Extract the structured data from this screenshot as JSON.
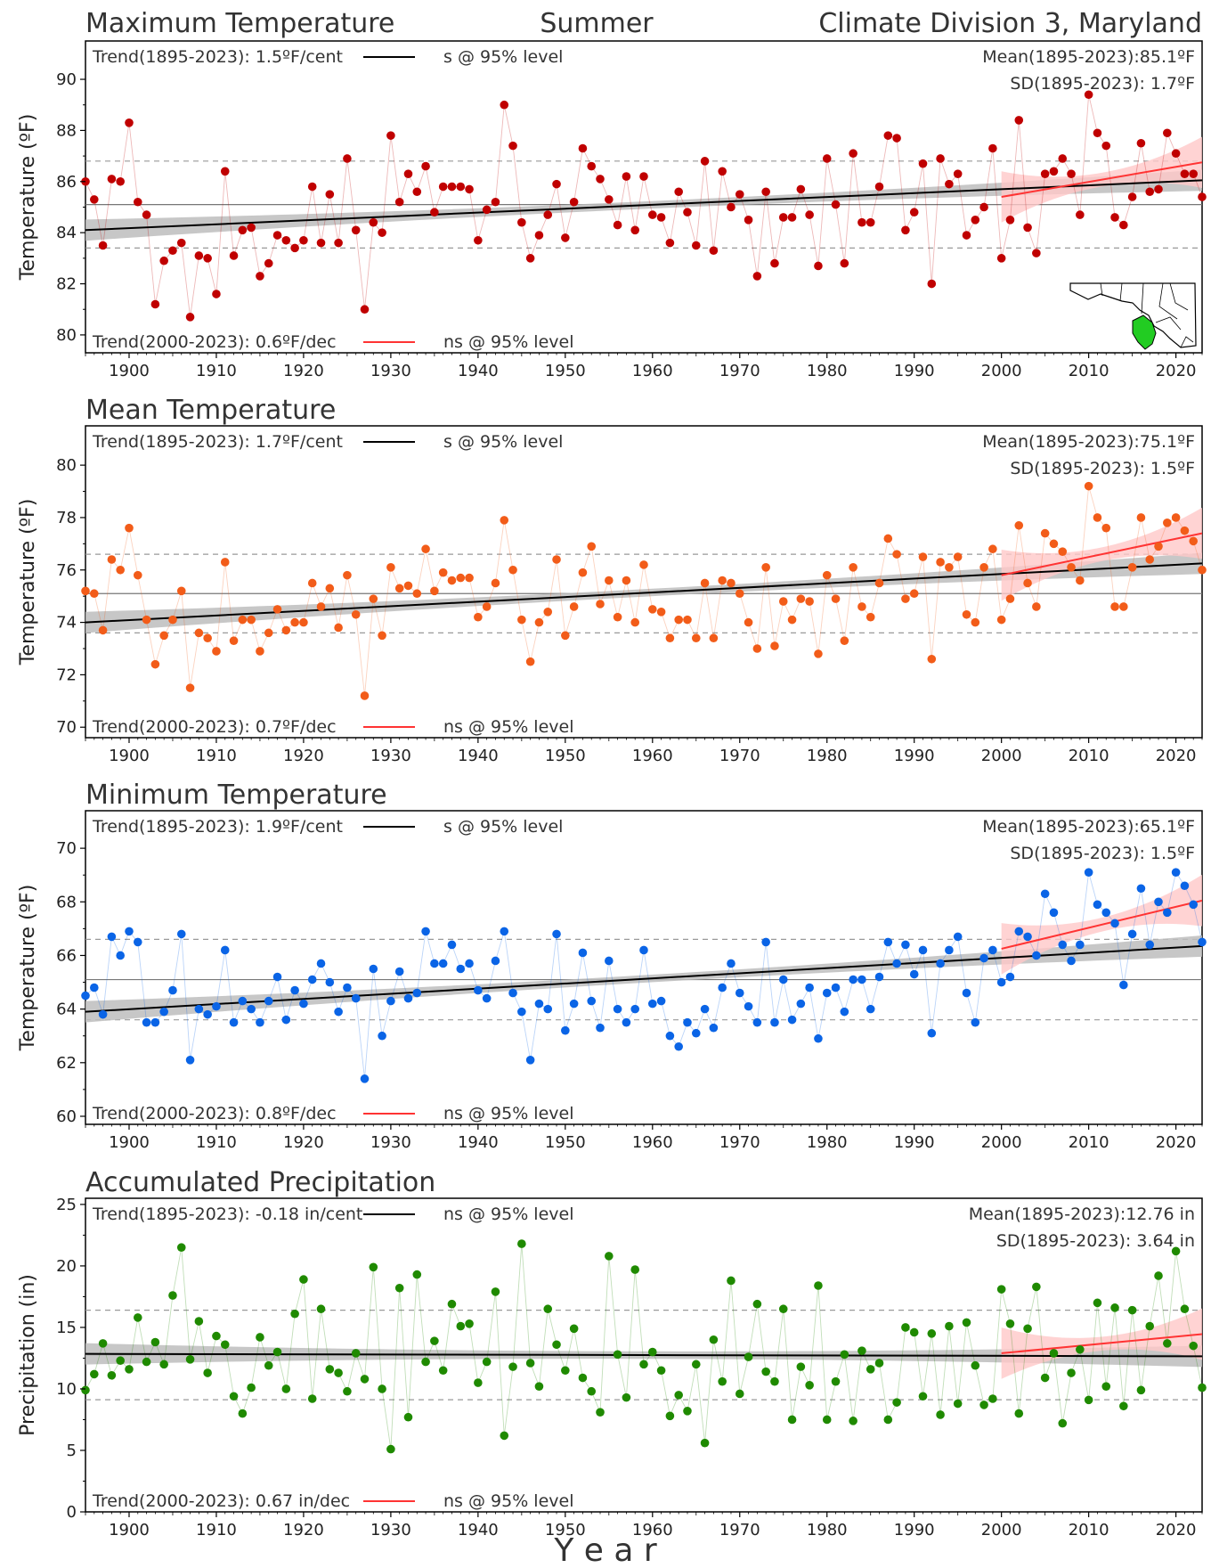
{
  "figure": {
    "season": "Summer",
    "region": "Climate Division 3, Maryland",
    "x_axis_label": "Y e a r"
  },
  "chart_data": [
    {
      "type": "scatter",
      "title": "Maximum Temperature",
      "ylabel": "Temperature (ºF)",
      "xlim": [
        1895,
        2023
      ],
      "ylim": [
        79.3,
        91.5
      ],
      "yticks": [
        80,
        82,
        84,
        86,
        88,
        90
      ],
      "xticks": [
        1900,
        1910,
        1920,
        1930,
        1940,
        1950,
        1960,
        1970,
        1980,
        1990,
        2000,
        2010,
        2020
      ],
      "color": "#c00000",
      "x": [
        1895,
        1896,
        1897,
        1898,
        1899,
        1900,
        1901,
        1902,
        1903,
        1904,
        1905,
        1906,
        1907,
        1908,
        1909,
        1910,
        1911,
        1912,
        1913,
        1914,
        1915,
        1916,
        1917,
        1918,
        1919,
        1920,
        1921,
        1922,
        1923,
        1924,
        1925,
        1926,
        1927,
        1928,
        1929,
        1930,
        1931,
        1932,
        1933,
        1934,
        1935,
        1936,
        1937,
        1938,
        1939,
        1940,
        1941,
        1942,
        1943,
        1944,
        1945,
        1946,
        1947,
        1948,
        1949,
        1950,
        1951,
        1952,
        1953,
        1954,
        1955,
        1956,
        1957,
        1958,
        1959,
        1960,
        1961,
        1962,
        1963,
        1964,
        1965,
        1966,
        1967,
        1968,
        1969,
        1970,
        1971,
        1972,
        1973,
        1974,
        1975,
        1976,
        1977,
        1978,
        1979,
        1980,
        1981,
        1982,
        1983,
        1984,
        1985,
        1986,
        1987,
        1988,
        1989,
        1990,
        1991,
        1992,
        1993,
        1994,
        1995,
        1996,
        1997,
        1998,
        1999,
        2000,
        2001,
        2002,
        2003,
        2004,
        2005,
        2006,
        2007,
        2008,
        2009,
        2010,
        2011,
        2012,
        2013,
        2014,
        2015,
        2016,
        2017,
        2018,
        2019,
        2020,
        2021,
        2022,
        2023
      ],
      "values": [
        86.0,
        85.3,
        83.5,
        86.1,
        86.0,
        88.3,
        85.2,
        84.7,
        81.2,
        82.9,
        83.3,
        83.6,
        80.7,
        83.1,
        83.0,
        81.6,
        86.4,
        83.1,
        84.1,
        84.2,
        82.3,
        82.8,
        83.9,
        83.7,
        83.4,
        83.7,
        85.8,
        83.6,
        85.5,
        83.6,
        86.9,
        84.1,
        81.0,
        84.4,
        84.0,
        87.8,
        85.2,
        86.3,
        85.6,
        86.6,
        84.8,
        85.8,
        85.8,
        85.8,
        85.7,
        83.7,
        84.9,
        85.2,
        89.0,
        87.4,
        84.4,
        83.0,
        83.9,
        84.7,
        85.9,
        83.8,
        85.2,
        87.3,
        86.6,
        86.1,
        85.3,
        84.3,
        86.2,
        84.1,
        86.2,
        84.7,
        84.6,
        83.6,
        85.6,
        84.8,
        83.5,
        86.8,
        83.3,
        86.4,
        85.0,
        85.5,
        84.5,
        82.3,
        85.6,
        82.8,
        84.6,
        84.6,
        85.7,
        84.7,
        82.7,
        86.9,
        85.1,
        82.8,
        87.1,
        84.4,
        84.4,
        85.8,
        87.8,
        87.7,
        84.1,
        84.8,
        86.7,
        82.0,
        86.9,
        85.9,
        86.3,
        83.9,
        84.5,
        85.0,
        87.3,
        83.0,
        84.5,
        88.4,
        84.2,
        83.2,
        86.3,
        86.4,
        86.9,
        86.3,
        84.7,
        89.4,
        87.9,
        87.4,
        84.6,
        84.3,
        85.4,
        87.5,
        85.6,
        85.7,
        87.9,
        87.1,
        86.3,
        86.3,
        85.4
      ],
      "mean": 85.1,
      "sd": 1.7,
      "long_trend": {
        "from": [
          1895,
          84.1
        ],
        "to": [
          2023,
          86.05
        ]
      },
      "short_trend": {
        "from": [
          2000,
          85.4
        ],
        "to": [
          2023,
          86.75
        ]
      },
      "trend_long_text": "Trend(1895-2023):  1.5ºF/cent",
      "trend_long_sig": "s @ 95% level",
      "trend_short_text": "Trend(2000-2023):  0.6ºF/dec",
      "trend_short_sig": "ns @ 95% level",
      "mean_text": "Mean(1895-2023):85.1ºF",
      "sd_text": "SD(1895-2023): 1.7ºF"
    },
    {
      "type": "scatter",
      "title": "Mean Temperature",
      "ylabel": "Temperature (ºF)",
      "xlim": [
        1895,
        2023
      ],
      "ylim": [
        69.6,
        81.5
      ],
      "yticks": [
        70,
        72,
        74,
        76,
        78,
        80
      ],
      "xticks": [
        1900,
        1910,
        1920,
        1930,
        1940,
        1950,
        1960,
        1970,
        1980,
        1990,
        2000,
        2010,
        2020
      ],
      "color": "#f25c19",
      "x": [
        1895,
        1896,
        1897,
        1898,
        1899,
        1900,
        1901,
        1902,
        1903,
        1904,
        1905,
        1906,
        1907,
        1908,
        1909,
        1910,
        1911,
        1912,
        1913,
        1914,
        1915,
        1916,
        1917,
        1918,
        1919,
        1920,
        1921,
        1922,
        1923,
        1924,
        1925,
        1926,
        1927,
        1928,
        1929,
        1930,
        1931,
        1932,
        1933,
        1934,
        1935,
        1936,
        1937,
        1938,
        1939,
        1940,
        1941,
        1942,
        1943,
        1944,
        1945,
        1946,
        1947,
        1948,
        1949,
        1950,
        1951,
        1952,
        1953,
        1954,
        1955,
        1956,
        1957,
        1958,
        1959,
        1960,
        1961,
        1962,
        1963,
        1964,
        1965,
        1966,
        1967,
        1968,
        1969,
        1970,
        1971,
        1972,
        1973,
        1974,
        1975,
        1976,
        1977,
        1978,
        1979,
        1980,
        1981,
        1982,
        1983,
        1984,
        1985,
        1986,
        1987,
        1988,
        1989,
        1990,
        1991,
        1992,
        1993,
        1994,
        1995,
        1996,
        1997,
        1998,
        1999,
        2000,
        2001,
        2002,
        2003,
        2004,
        2005,
        2006,
        2007,
        2008,
        2009,
        2010,
        2011,
        2012,
        2013,
        2014,
        2015,
        2016,
        2017,
        2018,
        2019,
        2020,
        2021,
        2022,
        2023
      ],
      "values": [
        75.2,
        75.1,
        73.7,
        76.4,
        76.0,
        77.6,
        75.8,
        74.1,
        72.4,
        73.5,
        74.1,
        75.2,
        71.5,
        73.6,
        73.4,
        72.9,
        76.3,
        73.3,
        74.1,
        74.1,
        72.9,
        73.6,
        74.5,
        73.7,
        74.0,
        74.0,
        75.5,
        74.6,
        75.3,
        73.8,
        75.8,
        74.3,
        71.2,
        74.9,
        73.5,
        76.1,
        75.3,
        75.4,
        75.1,
        76.8,
        75.2,
        75.9,
        75.6,
        75.7,
        75.7,
        74.2,
        74.6,
        75.5,
        77.9,
        76.0,
        74.1,
        72.5,
        74.0,
        74.4,
        76.4,
        73.5,
        74.6,
        75.9,
        76.9,
        74.7,
        75.6,
        74.2,
        75.6,
        74.0,
        76.2,
        74.5,
        74.4,
        73.4,
        74.1,
        74.1,
        73.4,
        75.5,
        73.4,
        75.6,
        75.5,
        75.1,
        74.0,
        73.0,
        76.1,
        73.1,
        74.8,
        74.1,
        74.9,
        74.8,
        72.8,
        75.8,
        74.9,
        73.3,
        76.1,
        74.6,
        74.2,
        75.5,
        77.2,
        76.6,
        74.9,
        75.1,
        76.5,
        72.6,
        76.3,
        76.1,
        76.5,
        74.3,
        74.0,
        76.1,
        76.8,
        74.1,
        74.9,
        77.7,
        75.5,
        74.6,
        77.4,
        77.0,
        76.7,
        76.1,
        75.6,
        79.2,
        78.0,
        77.6,
        74.6,
        74.6,
        76.1,
        78.0,
        76.4,
        76.9,
        77.8,
        78.0,
        77.5,
        77.1,
        76.0
      ],
      "mean": 75.1,
      "sd": 1.5,
      "long_trend": {
        "from": [
          1895,
          74.0
        ],
        "to": [
          2023,
          76.25
        ]
      },
      "short_trend": {
        "from": [
          2000,
          75.8
        ],
        "to": [
          2023,
          77.4
        ]
      },
      "trend_long_text": "Trend(1895-2023):  1.7ºF/cent",
      "trend_long_sig": "s @ 95% level",
      "trend_short_text": "Trend(2000-2023):  0.7ºF/dec",
      "trend_short_sig": "ns @ 95% level",
      "mean_text": "Mean(1895-2023):75.1ºF",
      "sd_text": "SD(1895-2023): 1.5ºF"
    },
    {
      "type": "scatter",
      "title": "Minimum Temperature",
      "ylabel": "Temperature (ºF)",
      "xlim": [
        1895,
        2023
      ],
      "ylim": [
        59.7,
        71.4
      ],
      "yticks": [
        60,
        62,
        64,
        66,
        68,
        70
      ],
      "xticks": [
        1900,
        1910,
        1920,
        1930,
        1940,
        1950,
        1960,
        1970,
        1980,
        1990,
        2000,
        2010,
        2020
      ],
      "color": "#0a64e6",
      "x": [
        1895,
        1896,
        1897,
        1898,
        1899,
        1900,
        1901,
        1902,
        1903,
        1904,
        1905,
        1906,
        1907,
        1908,
        1909,
        1910,
        1911,
        1912,
        1913,
        1914,
        1915,
        1916,
        1917,
        1918,
        1919,
        1920,
        1921,
        1922,
        1923,
        1924,
        1925,
        1926,
        1927,
        1928,
        1929,
        1930,
        1931,
        1932,
        1933,
        1934,
        1935,
        1936,
        1937,
        1938,
        1939,
        1940,
        1941,
        1942,
        1943,
        1944,
        1945,
        1946,
        1947,
        1948,
        1949,
        1950,
        1951,
        1952,
        1953,
        1954,
        1955,
        1956,
        1957,
        1958,
        1959,
        1960,
        1961,
        1962,
        1963,
        1964,
        1965,
        1966,
        1967,
        1968,
        1969,
        1970,
        1971,
        1972,
        1973,
        1974,
        1975,
        1976,
        1977,
        1978,
        1979,
        1980,
        1981,
        1982,
        1983,
        1984,
        1985,
        1986,
        1987,
        1988,
        1989,
        1990,
        1991,
        1992,
        1993,
        1994,
        1995,
        1996,
        1997,
        1998,
        1999,
        2000,
        2001,
        2002,
        2003,
        2004,
        2005,
        2006,
        2007,
        2008,
        2009,
        2010,
        2011,
        2012,
        2013,
        2014,
        2015,
        2016,
        2017,
        2018,
        2019,
        2020,
        2021,
        2022,
        2023
      ],
      "values": [
        64.5,
        64.8,
        63.8,
        66.7,
        66.0,
        66.9,
        66.5,
        63.5,
        63.5,
        63.9,
        64.7,
        66.8,
        62.1,
        64.0,
        63.8,
        64.1,
        66.2,
        63.5,
        64.3,
        64.0,
        63.5,
        64.3,
        65.2,
        63.6,
        64.7,
        64.2,
        65.1,
        65.7,
        65.0,
        63.9,
        64.8,
        64.4,
        61.4,
        65.5,
        63.0,
        64.3,
        65.4,
        64.4,
        64.6,
        66.9,
        65.7,
        65.7,
        66.4,
        65.5,
        65.7,
        64.7,
        64.4,
        65.8,
        66.9,
        64.6,
        63.9,
        62.1,
        64.2,
        64.0,
        66.8,
        63.2,
        64.2,
        66.1,
        64.3,
        63.3,
        65.8,
        64.0,
        63.5,
        64.0,
        66.2,
        64.2,
        64.3,
        63.0,
        62.6,
        63.5,
        63.1,
        64.0,
        63.3,
        64.8,
        65.7,
        64.6,
        64.1,
        63.5,
        66.5,
        63.5,
        65.1,
        63.6,
        64.2,
        64.8,
        62.9,
        64.6,
        64.8,
        63.9,
        65.1,
        65.1,
        64.0,
        65.2,
        66.5,
        65.7,
        66.4,
        65.3,
        66.2,
        63.1,
        65.7,
        66.2,
        66.7,
        64.6,
        63.5,
        65.9,
        66.2,
        65.0,
        65.2,
        66.9,
        66.7,
        66.0,
        68.3,
        67.6,
        66.4,
        65.8,
        66.4,
        69.1,
        67.9,
        67.6,
        67.2,
        64.9,
        66.8,
        68.5,
        66.4,
        68.0,
        67.6,
        69.1,
        68.6,
        67.9,
        66.5
      ],
      "mean": 65.1,
      "sd": 1.5,
      "long_trend": {
        "from": [
          1895,
          63.9
        ],
        "to": [
          2023,
          66.35
        ]
      },
      "short_trend": {
        "from": [
          2000,
          66.25
        ],
        "to": [
          2023,
          68.05
        ]
      },
      "trend_long_text": "Trend(1895-2023):  1.9ºF/cent",
      "trend_long_sig": "s @ 95% level",
      "trend_short_text": "Trend(2000-2023):  0.8ºF/dec",
      "trend_short_sig": "ns @ 95% level",
      "mean_text": "Mean(1895-2023):65.1ºF",
      "sd_text": "SD(1895-2023): 1.5ºF"
    },
    {
      "type": "scatter",
      "title": "Accumulated Precipitation",
      "ylabel": "Precipitation (in)",
      "xlim": [
        1895,
        2023
      ],
      "ylim": [
        0,
        25.5
      ],
      "yticks": [
        0,
        5,
        10,
        15,
        20,
        25
      ],
      "xticks": [
        1900,
        1910,
        1920,
        1930,
        1940,
        1950,
        1960,
        1970,
        1980,
        1990,
        2000,
        2010,
        2020
      ],
      "color": "#1f8a00",
      "x": [
        1895,
        1896,
        1897,
        1898,
        1899,
        1900,
        1901,
        1902,
        1903,
        1904,
        1905,
        1906,
        1907,
        1908,
        1909,
        1910,
        1911,
        1912,
        1913,
        1914,
        1915,
        1916,
        1917,
        1918,
        1919,
        1920,
        1921,
        1922,
        1923,
        1924,
        1925,
        1926,
        1927,
        1928,
        1929,
        1930,
        1931,
        1932,
        1933,
        1934,
        1935,
        1936,
        1937,
        1938,
        1939,
        1940,
        1941,
        1942,
        1943,
        1944,
        1945,
        1946,
        1947,
        1948,
        1949,
        1950,
        1951,
        1952,
        1953,
        1954,
        1955,
        1956,
        1957,
        1958,
        1959,
        1960,
        1961,
        1962,
        1963,
        1964,
        1965,
        1966,
        1967,
        1968,
        1969,
        1970,
        1971,
        1972,
        1973,
        1974,
        1975,
        1976,
        1977,
        1978,
        1979,
        1980,
        1981,
        1982,
        1983,
        1984,
        1985,
        1986,
        1987,
        1988,
        1989,
        1990,
        1991,
        1992,
        1993,
        1994,
        1995,
        1996,
        1997,
        1998,
        1999,
        2000,
        2001,
        2002,
        2003,
        2004,
        2005,
        2006,
        2007,
        2008,
        2009,
        2010,
        2011,
        2012,
        2013,
        2014,
        2015,
        2016,
        2017,
        2018,
        2019,
        2020,
        2021,
        2022,
        2023
      ],
      "values": [
        9.9,
        11.2,
        13.7,
        11.1,
        12.3,
        11.6,
        15.8,
        12.2,
        13.8,
        12.0,
        17.6,
        21.5,
        12.4,
        15.5,
        11.3,
        14.3,
        13.6,
        9.4,
        8.0,
        10.1,
        14.2,
        11.9,
        13.0,
        10.0,
        16.1,
        18.9,
        9.2,
        16.5,
        11.6,
        11.3,
        9.8,
        12.9,
        10.8,
        19.9,
        10.0,
        5.1,
        18.2,
        7.7,
        19.3,
        12.2,
        13.9,
        11.5,
        16.9,
        15.1,
        15.3,
        10.5,
        12.2,
        17.9,
        6.2,
        11.8,
        21.8,
        12.1,
        10.2,
        16.5,
        13.6,
        11.5,
        14.9,
        10.9,
        9.8,
        8.1,
        20.8,
        12.8,
        9.3,
        19.7,
        12.0,
        13.0,
        11.5,
        7.8,
        9.5,
        8.2,
        12.0,
        5.6,
        14.0,
        10.6,
        18.8,
        9.6,
        12.6,
        16.9,
        11.4,
        10.6,
        16.5,
        7.5,
        11.8,
        10.3,
        18.4,
        7.5,
        10.6,
        12.8,
        7.4,
        13.1,
        11.6,
        12.1,
        7.5,
        8.9,
        15.0,
        14.6,
        9.4,
        14.5,
        7.9,
        15.1,
        8.8,
        15.4,
        11.9,
        8.7,
        9.2,
        18.1,
        15.3,
        8.0,
        14.9,
        18.3,
        10.9,
        12.9,
        7.2,
        11.3,
        13.2,
        9.1,
        17.0,
        10.2,
        16.6,
        8.6,
        16.4,
        9.9,
        15.1,
        19.2,
        13.7,
        21.2,
        16.5,
        13.5,
        10.1
      ],
      "mean": 12.76,
      "sd": 3.64,
      "long_trend": {
        "from": [
          1895,
          12.85
        ],
        "to": [
          2023,
          12.65
        ]
      },
      "short_trend": {
        "from": [
          2000,
          12.9
        ],
        "to": [
          2023,
          14.45
        ]
      },
      "trend_long_text": "Trend(1895-2023): -0.18 in/cent",
      "trend_long_sig": "ns @ 95% level",
      "trend_short_text": "Trend(2000-2023):  0.67 in/dec",
      "trend_short_sig": "ns @ 95% level",
      "mean_text": "Mean(1895-2023):12.76 in",
      "sd_text": "SD(1895-2023): 3.64 in"
    }
  ],
  "colors": {
    "long_trend": "#000000",
    "long_band": "#bdbdbd",
    "short_trend": "#ff3333",
    "short_band": "#ffc8c8",
    "mean_line": "#777777",
    "sd_line": "#999999",
    "map_highlight": "#22cc22"
  }
}
